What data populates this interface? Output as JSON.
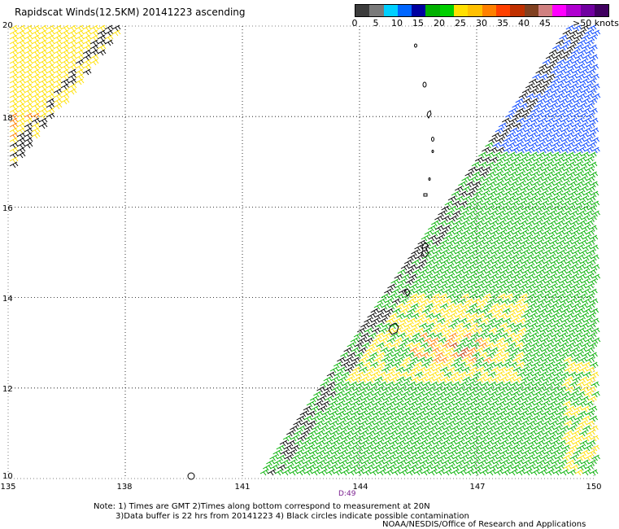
{
  "title": "Rapidscat Winds(12.5KM) 20141223 ascending",
  "legend": {
    "colors": [
      "#3c3c3c",
      "#7a7a7a",
      "#00d0ff",
      "#0066ff",
      "#0000a0",
      "#00b000",
      "#00d000",
      "#ffe000",
      "#ffc000",
      "#ff8000",
      "#ff4000",
      "#c03000",
      "#804020",
      "#d08080",
      "#ff00ff",
      "#b000d0",
      "#7000a0",
      "#400060"
    ],
    "ticks": [
      "0",
      "5",
      "10",
      "15",
      "20",
      "25",
      "30",
      "35",
      "40",
      "45"
    ],
    "unit_label": ">50 knots"
  },
  "map": {
    "lat_labels": [
      "20",
      "18",
      "16",
      "14",
      "12",
      "10"
    ],
    "lon_labels": [
      "135",
      "138",
      "141",
      "144",
      "147",
      "150"
    ],
    "pass_time_label": "D:49",
    "lat_range": [
      10,
      20
    ],
    "lon_range": [
      135,
      150
    ],
    "swath_colors": {
      "low": "#00b000",
      "mid": "#ffe000",
      "high": "#ff8000",
      "very_high": "#c03000",
      "north": "#0040ff",
      "rain_flag": "#000000"
    }
  },
  "notes": {
    "line1": "Note: 1) Times are GMT 2)Times along bottom correspond to measurement at 20N",
    "line2": "3)Data buffer is 22 hrs from 20141223 4) Black circles indicate possible contamination"
  },
  "credit": "NOAA/NESDIS/Office of Research and Applications"
}
